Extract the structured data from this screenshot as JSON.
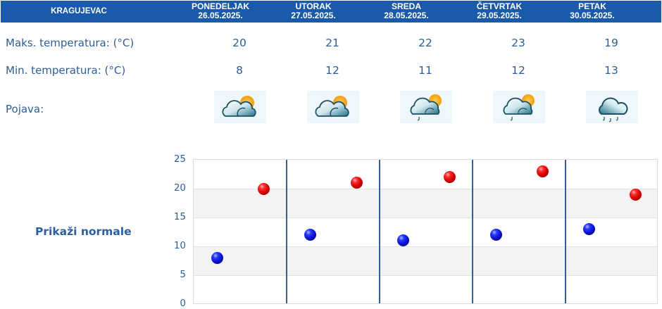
{
  "header": {
    "city": "KRAGUJEVAC",
    "days": [
      {
        "name": "PONEDELJAK",
        "date": "26.05.2025."
      },
      {
        "name": "UTORAK",
        "date": "27.05.2025."
      },
      {
        "name": "SREDA",
        "date": "28.05.2025."
      },
      {
        "name": "ČETVRTAK",
        "date": "29.05.2025."
      },
      {
        "name": "PETAK",
        "date": "30.05.2025."
      }
    ]
  },
  "rows": {
    "max_label": "Maks. temperatura: (°C)",
    "min_label": "Min. temperatura: (°C)",
    "weather_label": "Pojava:",
    "max": [
      "20",
      "21",
      "22",
      "23",
      "19"
    ],
    "min": [
      "8",
      "12",
      "11",
      "12",
      "13"
    ],
    "weather_icons": [
      "partly-cloudy-icon",
      "partly-cloudy-icon",
      "partly-cloudy-light-rain-icon",
      "partly-cloudy-light-rain-icon",
      "cloud-rain-icon"
    ]
  },
  "link": {
    "show_normals": "Prikaži normale"
  },
  "colors": {
    "header_bg": "#1a5aa8",
    "text": "#2c5e95",
    "max_dot": "#d40000",
    "min_dot": "#0a10c8"
  },
  "chart_data": {
    "type": "scatter",
    "title": "",
    "xlabel": "",
    "ylabel": "",
    "categories": [
      "PONEDELJAK 26.05.2025.",
      "UTORAK 27.05.2025.",
      "SREDA 28.05.2025.",
      "ČETVRTAK 29.05.2025.",
      "PETAK 30.05.2025."
    ],
    "series": [
      {
        "name": "Min. temperatura (°C)",
        "color": "#0a10c8",
        "values": [
          8,
          12,
          11,
          12,
          13
        ]
      },
      {
        "name": "Maks. temperatura (°C)",
        "color": "#d40000",
        "values": [
          20,
          21,
          22,
          23,
          19
        ]
      }
    ],
    "ylim": [
      0,
      25
    ],
    "yticks": [
      "25",
      "20",
      "15",
      "10",
      "5",
      "0"
    ],
    "grid": true,
    "legend": "none"
  }
}
